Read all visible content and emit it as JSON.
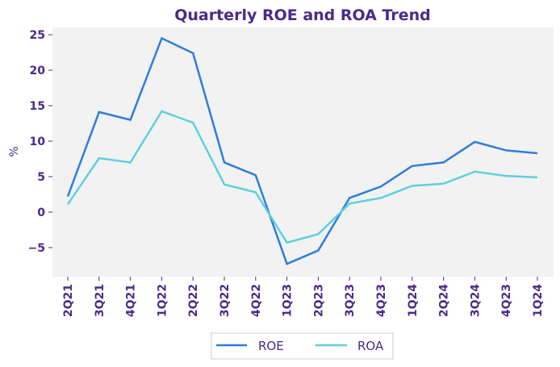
{
  "chart_data": {
    "type": "line",
    "title": "Quarterly ROE and ROA Trend",
    "xlabel": "",
    "ylabel": "%",
    "categories": [
      "2Q21",
      "3Q21",
      "4Q21",
      "1Q22",
      "2Q22",
      "3Q22",
      "4Q22",
      "1Q23",
      "2Q23",
      "3Q23",
      "4Q23",
      "1Q24",
      "2Q24",
      "3Q24",
      "4Q23",
      "1Q24"
    ],
    "series": [
      {
        "name": "ROE",
        "color": "#2f7ddb",
        "values": [
          2.2,
          14.1,
          13.0,
          24.5,
          22.4,
          7.0,
          5.2,
          -7.3,
          -5.4,
          2.0,
          3.6,
          6.5,
          7.0,
          9.9,
          8.7,
          8.3
        ]
      },
      {
        "name": "ROA",
        "color": "#5fd0dc",
        "values": [
          1.1,
          7.6,
          7.0,
          14.2,
          12.6,
          3.9,
          2.8,
          -4.3,
          -3.1,
          1.2,
          2.0,
          3.7,
          4.0,
          5.7,
          5.1,
          4.9
        ]
      }
    ],
    "yticks": [
      -5,
      0,
      5,
      10,
      15,
      20,
      25
    ],
    "ylim": [
      -9.0,
      26.0
    ],
    "grid": false,
    "legend_position": "bottom-center",
    "plot_background": "#f2f2f2",
    "text_color": "#4b2a8a"
  }
}
